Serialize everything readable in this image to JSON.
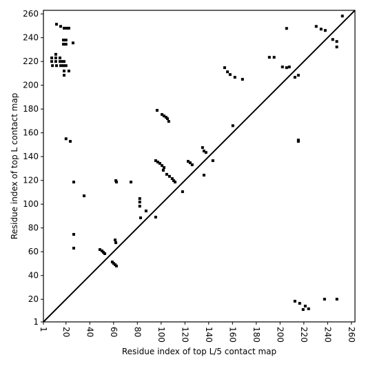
{
  "chart_data": {
    "type": "scatter",
    "x_label": "Residue index of top L/5 contact map",
    "y_label": "Residue index of top L contact map",
    "xlim": [
      1,
      263
    ],
    "ylim": [
      1,
      263
    ],
    "xticks": [
      1,
      20,
      40,
      60,
      80,
      100,
      120,
      140,
      160,
      180,
      200,
      220,
      240,
      260
    ],
    "yticks": [
      1,
      20,
      40,
      60,
      80,
      100,
      120,
      140,
      160,
      180,
      200,
      220,
      240,
      260
    ],
    "diagonal": true,
    "color": "#000000",
    "x": [
      12,
      15.5,
      18.4,
      20.7,
      22.4,
      17.8,
      20,
      17.8,
      20,
      25.9,
      11.4,
      8,
      11.4,
      8,
      11.4,
      14.9,
      16.6,
      18.4,
      14.9,
      8.6,
      12,
      15.5,
      17.8,
      20,
      22.4,
      18.4,
      18.4,
      20,
      23.6,
      26.5,
      35.2,
      26.5,
      26.5,
      48.5,
      50.3,
      51.4,
      52.6,
      58.9,
      60,
      61.3,
      62.4,
      61.3,
      61.9,
      61.9,
      62.4,
      74.6,
      82,
      82,
      82,
      82.7,
      87.3,
      95.4,
      96.6,
      100.7,
      102.4,
      104.1,
      105.3,
      106.4,
      95.4,
      97.2,
      98.9,
      100.7,
      102.4,
      101.8,
      104.7,
      107,
      109.3,
      110.5,
      111.7,
      118,
      122.7,
      124.4,
      126.1,
      134.8,
      136,
      137.7,
      136,
      143.5,
      153.4,
      155.8,
      158,
      162,
      168.4,
      160.3,
      191,
      195,
      202,
      205.5,
      207.8,
      205.5,
      212.5,
      215.4,
      215.4,
      215.4,
      230.4,
      234.5,
      238,
      244.3,
      247.7,
      247.7,
      252.4,
      212.5,
      216.5,
      221.2,
      224,
      219.4,
      237.4,
      247.8
    ],
    "y": [
      251.3,
      249.5,
      248,
      248,
      248,
      238,
      238,
      234.5,
      234.5,
      235.6,
      226,
      223,
      223,
      220,
      220,
      220,
      220,
      220,
      223,
      216.5,
      216.5,
      216.5,
      216.5,
      216.5,
      212,
      212,
      208.4,
      155,
      152.8,
      118.6,
      107,
      74.6,
      63,
      61.8,
      60.7,
      59.5,
      58.4,
      51.4,
      50.2,
      49.1,
      48,
      69.9,
      67.6,
      119.8,
      118.6,
      118.6,
      104.7,
      101.8,
      98.3,
      88.5,
      94.3,
      89.1,
      178.9,
      175.4,
      174.2,
      173.1,
      171.9,
      169.6,
      136.6,
      135.4,
      134.3,
      132.5,
      130.8,
      128.5,
      125.1,
      123.4,
      121.5,
      119.8,
      118.6,
      110.5,
      136,
      134.8,
      133.1,
      147.6,
      144.7,
      143.5,
      124.4,
      136.6,
      214.8,
      211.3,
      209,
      206.7,
      205,
      166,
      223.5,
      223.5,
      215.4,
      214.8,
      215.4,
      247.8,
      206.7,
      208.4,
      153.9,
      152.8,
      249.5,
      247.2,
      246.1,
      238.5,
      236.8,
      232.2,
      258.2,
      18.4,
      16.6,
      14.3,
      12,
      11.4,
      20.1,
      20.1
    ]
  }
}
